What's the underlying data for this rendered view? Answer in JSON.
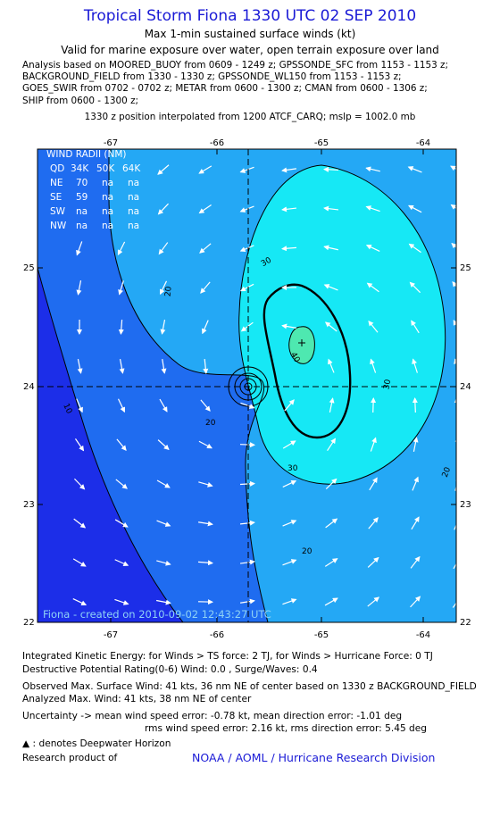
{
  "header": {
    "title": "Tropical Storm Fiona 1330 UTC 02 SEP 2010",
    "subtitle": "Max 1-min sustained surface winds (kt)",
    "validity": "Valid for marine exposure over water, open terrain exposure over land",
    "analysis_lines": [
      "Analysis based on MOORED_BUOY from 0609 - 1249 z; GPSSONDE_SFC from 1153 - 1153 z;",
      "BACKGROUND_FIELD from 1330 - 1330 z; GPSSONDE_WL150 from 1153 - 1153 z;",
      "GOES_SWIR from 0702 - 0702 z; METAR from 0600 - 1300 z; CMAN from 0600 - 1306 z;",
      "SHIP from 0600 - 1300 z;"
    ],
    "position_note": "1330 z position interpolated from 1200 ATCF_CARQ; mslp = 1002.0 mb"
  },
  "map": {
    "lon_ticks": [
      "-67",
      "-66",
      "-65",
      "-64"
    ],
    "lat_ticks": [
      "25",
      "24",
      "23",
      "22"
    ],
    "center": {
      "lon": -65.58,
      "lat": 24.0
    },
    "max_wind_marker": {
      "lon": -65.1,
      "lat": 24.37
    },
    "contour_labels": [
      "10",
      "20",
      "20",
      "20",
      "20",
      "30",
      "30",
      "30",
      "40"
    ],
    "wind_radii": {
      "title": "WIND RADII (NM)",
      "header": [
        "QD",
        "34K",
        "50K",
        "64K"
      ],
      "rows": [
        [
          "NE",
          "70",
          "na",
          "na"
        ],
        [
          "SE",
          "59",
          "na",
          "na"
        ],
        [
          "SW",
          "na",
          "na",
          "na"
        ],
        [
          "NW",
          "na",
          "na",
          "na"
        ]
      ]
    },
    "credit": "Fiona - created on 2010-09-02 12:43:27 UTC",
    "colors": {
      "lt10": "#1c2ee8",
      "b10_20": "#1f6cf0",
      "b20_30": "#24a8f5",
      "b30_40": "#16e8f5",
      "gt40": "#4ee8b0",
      "contour": "#000000",
      "arrow": "#ffffff"
    }
  },
  "footer": {
    "ike": "Integrated Kinetic Energy:  for Winds > TS force: 2 TJ,  for Winds > Hurricane Force: 0 TJ",
    "dpr": "Destructive Potential Rating(0-6)   Wind: 0.0 , Surge/Waves: 0.4",
    "obs_max": "Observed Max. Surface Wind: 41 kts, 36 nm NE of center based on 1330 z BACKGROUND_FIELD",
    "analyzed_max": "Analyzed Max. Wind: 41 kts, 38 nm NE of center",
    "uncertainty1": "Uncertainty -> mean wind speed error:  -0.78 kt,   mean direction error:  -1.01 deg",
    "uncertainty2": "rms wind speed error: 2.16 kt,   rms direction error: 5.45 deg",
    "deepwater": ": denotes Deepwater Horizon",
    "research": "Research product of",
    "org": "NOAA / AOML / Hurricane Research Division"
  }
}
